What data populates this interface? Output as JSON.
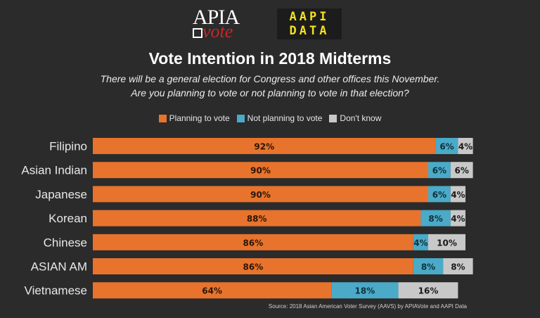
{
  "logos": {
    "apia_line1": "APIA",
    "apia_line2": "vote",
    "aapi_line1": "AAPI",
    "aapi_line2": "DATA"
  },
  "source": "Source: 2018 Asian American Voter Survey (AAVS) by APIAVote and AAPI Data",
  "chart_data": {
    "type": "bar",
    "orientation": "horizontal",
    "stacked": true,
    "title": "Vote Intention in 2018 Midterms",
    "subtitle_lines": [
      "There will be a general election for Congress and other offices this November.",
      "Are you planning to vote or not planning to vote in that election?"
    ],
    "legend_position": "top",
    "categories": [
      "Filipino",
      "Asian Indian",
      "Japanese",
      "Korean",
      "Chinese",
      "ASIAN AM",
      "Vietnamese"
    ],
    "series": [
      {
        "name": "Planning to vote",
        "color": "#e8732c",
        "values": [
          92,
          90,
          90,
          88,
          86,
          86,
          64
        ],
        "labels": [
          "92%",
          "90%",
          "90%",
          "88%",
          "86%",
          "86%",
          "64%"
        ]
      },
      {
        "name": "Not planning to vote",
        "color": "#4aaac8",
        "values": [
          6,
          6,
          6,
          8,
          4,
          8,
          18
        ],
        "labels": [
          "6%",
          "6%",
          "6%",
          "8%",
          "4%",
          "8%",
          "18%"
        ]
      },
      {
        "name": "Don't know",
        "color": "#c8c8c8",
        "values": [
          4,
          6,
          4,
          4,
          10,
          8,
          16
        ],
        "labels": [
          "4%",
          "6%",
          "4%",
          "4%",
          "10%",
          "8%",
          "16%"
        ]
      }
    ],
    "xlim": [
      0,
      100
    ],
    "grid": false
  }
}
